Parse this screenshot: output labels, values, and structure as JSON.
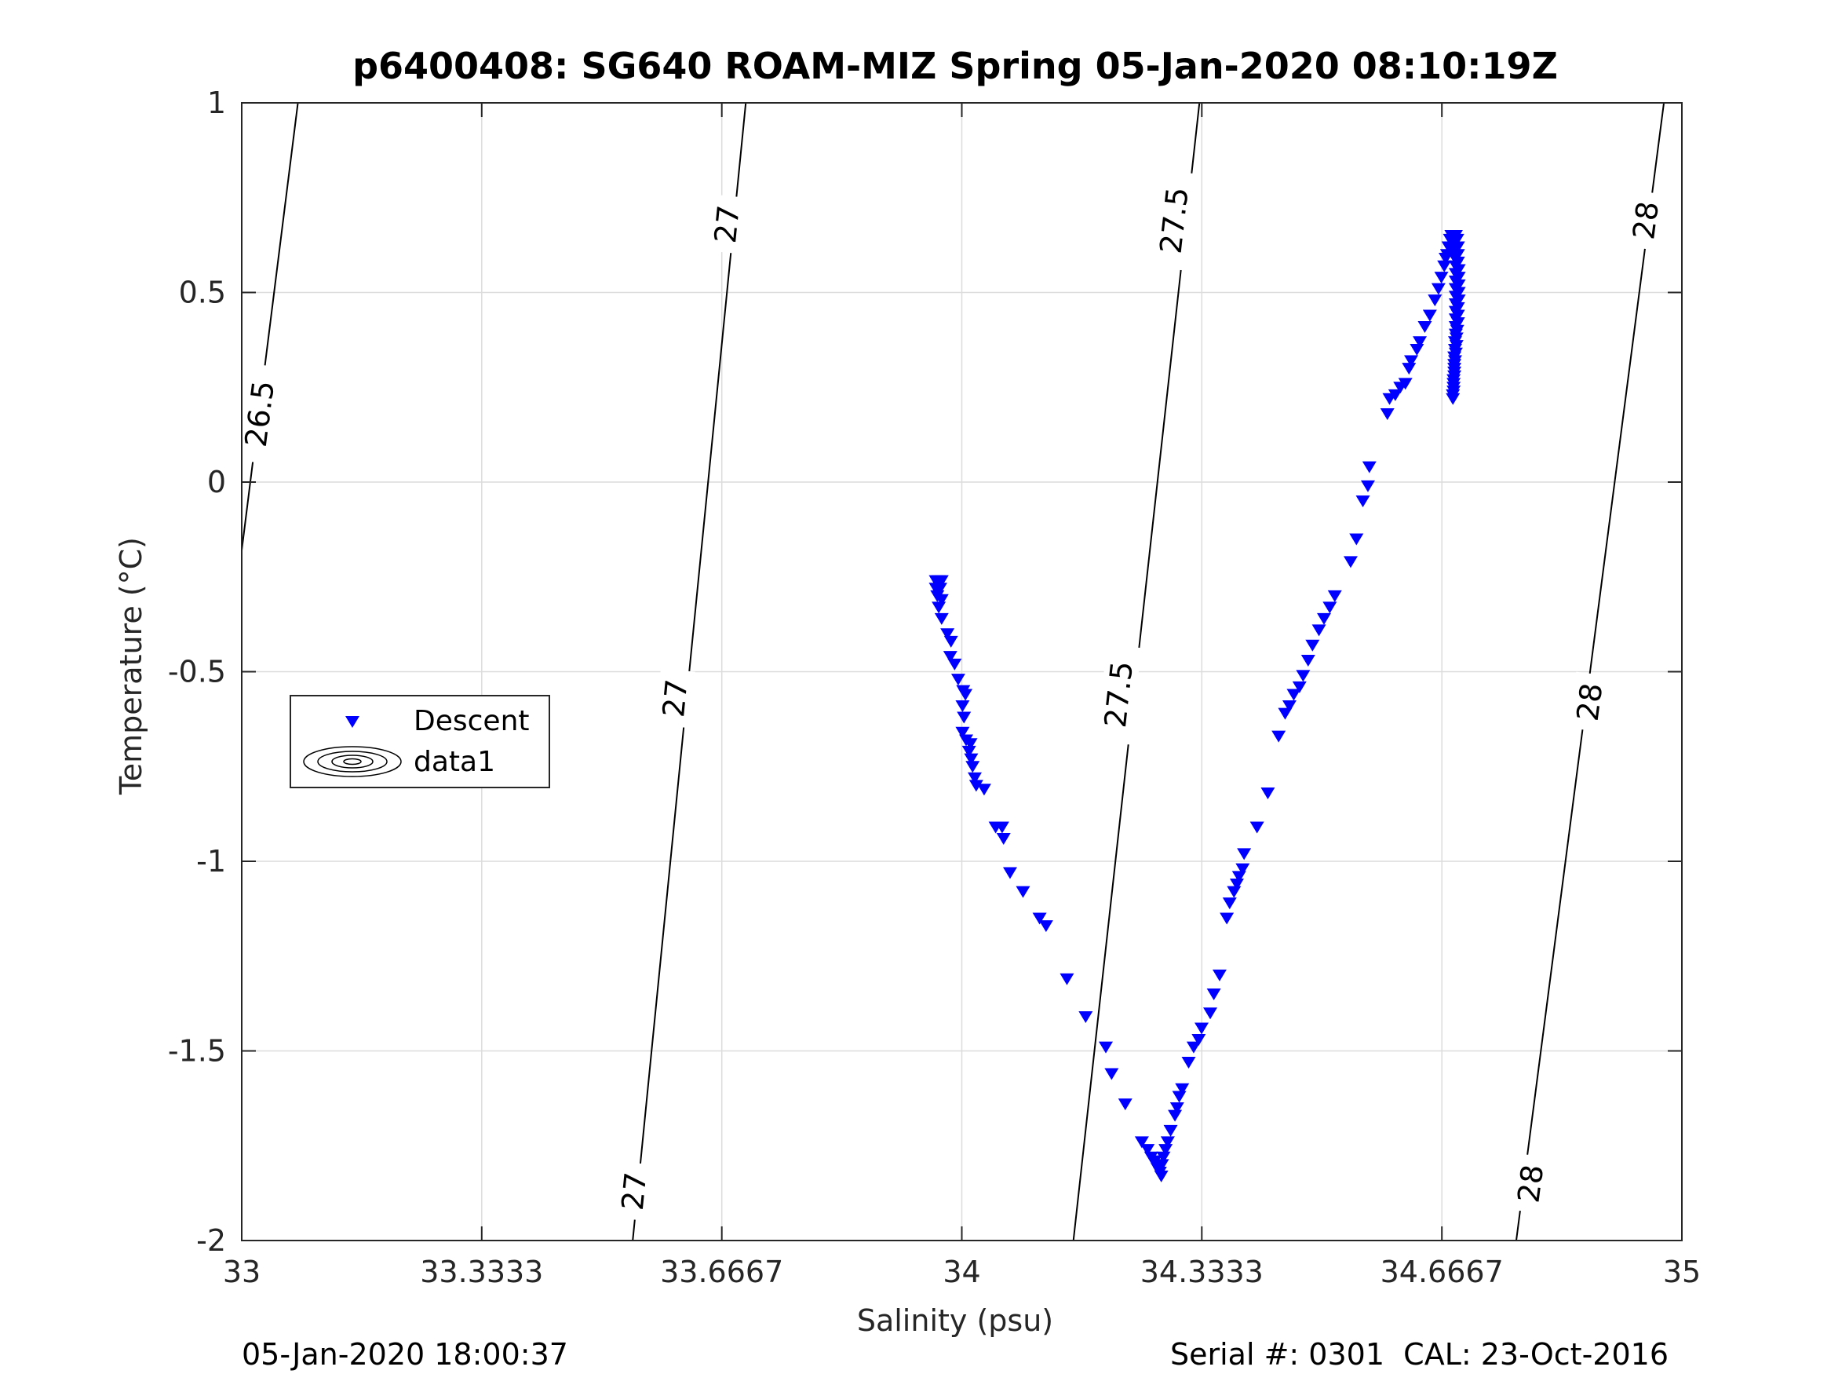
{
  "chart_data": {
    "type": "scatter",
    "title": "p6400408: SG640 ROAM-MIZ Spring 05-Jan-2020 08:10:19Z",
    "xlabel": "Salinity (psu)",
    "ylabel": "Temperature (°C)",
    "xlim": [
      33,
      35
    ],
    "ylim": [
      -2,
      1
    ],
    "xticks": [
      33,
      33.3333,
      33.6667,
      34,
      34.3333,
      34.6667,
      35
    ],
    "xtick_labels": [
      "33",
      "33.3333",
      "33.6667",
      "34",
      "34.3333",
      "34.6667",
      "35"
    ],
    "yticks": [
      -2,
      -1.5,
      -1,
      -0.5,
      0,
      0.5,
      1
    ],
    "ytick_labels": [
      "-2",
      "-1.5",
      "-1",
      "-0.5",
      "0",
      "0.5",
      "1"
    ],
    "grid": true,
    "legend": {
      "placement": "middle-left",
      "entries": [
        {
          "label": "Descent",
          "marker": "triangle-down",
          "color": "#0000ff"
        },
        {
          "label": "data1",
          "marker": "contour",
          "color": "#000000"
        }
      ]
    },
    "series": [
      {
        "name": "Descent",
        "marker": "triangle-down",
        "color": "#0000ff",
        "points": [
          [
            33.964,
            -0.26
          ],
          [
            33.968,
            -0.26
          ],
          [
            33.972,
            -0.26
          ],
          [
            33.964,
            -0.28
          ],
          [
            33.97,
            -0.28
          ],
          [
            33.966,
            -0.3
          ],
          [
            33.972,
            -0.31
          ],
          [
            33.968,
            -0.33
          ],
          [
            33.972,
            -0.36
          ],
          [
            33.98,
            -0.4
          ],
          [
            33.985,
            -0.42
          ],
          [
            33.984,
            -0.46
          ],
          [
            33.99,
            -0.48
          ],
          [
            33.995,
            -0.52
          ],
          [
            34.002,
            -0.55
          ],
          [
            34.005,
            -0.56
          ],
          [
            34.001,
            -0.59
          ],
          [
            34.003,
            -0.62
          ],
          [
            34.001,
            -0.66
          ],
          [
            34.006,
            -0.68
          ],
          [
            34.012,
            -0.69
          ],
          [
            34.01,
            -0.71
          ],
          [
            34.013,
            -0.73
          ],
          [
            34.015,
            -0.75
          ],
          [
            34.018,
            -0.78
          ],
          [
            34.02,
            -0.8
          ],
          [
            34.031,
            -0.81
          ],
          [
            34.047,
            -0.91
          ],
          [
            34.056,
            -0.91
          ],
          [
            34.058,
            -0.94
          ],
          [
            34.067,
            -1.03
          ],
          [
            34.085,
            -1.08
          ],
          [
            34.108,
            -1.15
          ],
          [
            34.117,
            -1.17
          ],
          [
            34.146,
            -1.31
          ],
          [
            34.172,
            -1.41
          ],
          [
            34.2,
            -1.49
          ],
          [
            34.208,
            -1.56
          ],
          [
            34.227,
            -1.64
          ],
          [
            34.25,
            -1.74
          ],
          [
            34.258,
            -1.76
          ],
          [
            34.263,
            -1.78
          ],
          [
            34.268,
            -1.79
          ],
          [
            34.27,
            -1.8
          ],
          [
            34.272,
            -1.81
          ],
          [
            34.275,
            -1.82
          ],
          [
            34.277,
            -1.83
          ],
          [
            34.278,
            -1.8
          ],
          [
            34.28,
            -1.78
          ],
          [
            34.283,
            -1.76
          ],
          [
            34.286,
            -1.74
          ],
          [
            34.29,
            -1.71
          ],
          [
            34.296,
            -1.67
          ],
          [
            34.299,
            -1.65
          ],
          [
            34.302,
            -1.62
          ],
          [
            34.306,
            -1.6
          ],
          [
            34.315,
            -1.53
          ],
          [
            34.322,
            -1.49
          ],
          [
            34.329,
            -1.47
          ],
          [
            34.333,
            -1.44
          ],
          [
            34.345,
            -1.4
          ],
          [
            34.35,
            -1.35
          ],
          [
            34.358,
            -1.3
          ],
          [
            34.368,
            -1.15
          ],
          [
            34.372,
            -1.11
          ],
          [
            34.378,
            -1.08
          ],
          [
            34.382,
            -1.06
          ],
          [
            34.385,
            -1.04
          ],
          [
            34.39,
            -1.02
          ],
          [
            34.392,
            -0.98
          ],
          [
            34.41,
            -0.91
          ],
          [
            34.425,
            -0.82
          ],
          [
            34.44,
            -0.67
          ],
          [
            34.449,
            -0.61
          ],
          [
            34.455,
            -0.59
          ],
          [
            34.461,
            -0.56
          ],
          [
            34.469,
            -0.54
          ],
          [
            34.474,
            -0.51
          ],
          [
            34.481,
            -0.47
          ],
          [
            34.487,
            -0.43
          ],
          [
            34.496,
            -0.39
          ],
          [
            34.503,
            -0.36
          ],
          [
            34.511,
            -0.33
          ],
          [
            34.518,
            -0.3
          ],
          [
            34.54,
            -0.21
          ],
          [
            34.548,
            -0.15
          ],
          [
            34.557,
            -0.05
          ],
          [
            34.564,
            -0.01
          ],
          [
            34.566,
            0.04
          ],
          [
            34.591,
            0.18
          ],
          [
            34.594,
            0.22
          ],
          [
            34.602,
            0.23
          ],
          [
            34.609,
            0.25
          ],
          [
            34.616,
            0.26
          ],
          [
            34.621,
            0.3
          ],
          [
            34.624,
            0.32
          ],
          [
            34.632,
            0.35
          ],
          [
            34.636,
            0.37
          ],
          [
            34.643,
            0.41
          ],
          [
            34.65,
            0.44
          ],
          [
            34.657,
            0.48
          ],
          [
            34.662,
            0.51
          ],
          [
            34.666,
            0.54
          ],
          [
            34.67,
            0.57
          ],
          [
            34.672,
            0.59
          ],
          [
            34.674,
            0.6
          ],
          [
            34.676,
            0.62
          ],
          [
            34.678,
            0.64
          ],
          [
            34.68,
            0.65
          ],
          [
            34.683,
            0.65
          ],
          [
            34.686,
            0.65
          ],
          [
            34.688,
            0.64
          ],
          [
            34.689,
            0.62
          ],
          [
            34.689,
            0.6
          ],
          [
            34.689,
            0.58
          ],
          [
            34.69,
            0.56
          ],
          [
            34.69,
            0.54
          ],
          [
            34.69,
            0.52
          ],
          [
            34.69,
            0.5
          ],
          [
            34.69,
            0.48
          ],
          [
            34.689,
            0.46
          ],
          [
            34.689,
            0.44
          ],
          [
            34.689,
            0.42
          ],
          [
            34.688,
            0.4
          ],
          [
            34.687,
            0.38
          ],
          [
            34.687,
            0.36
          ],
          [
            34.686,
            0.34
          ],
          [
            34.685,
            0.32
          ],
          [
            34.684,
            0.3
          ],
          [
            34.684,
            0.28
          ],
          [
            34.683,
            0.26
          ],
          [
            34.683,
            0.24
          ],
          [
            34.682,
            0.22
          ],
          [
            34.682,
            0.23
          ],
          [
            34.683,
            0.25
          ],
          [
            34.683,
            0.27
          ],
          [
            34.684,
            0.29
          ],
          [
            34.684,
            0.31
          ],
          [
            34.684,
            0.33
          ],
          [
            34.685,
            0.35
          ],
          [
            34.685,
            0.37
          ],
          [
            34.686,
            0.39
          ],
          [
            34.686,
            0.41
          ],
          [
            34.686,
            0.43
          ],
          [
            34.686,
            0.45
          ],
          [
            34.686,
            0.47
          ],
          [
            34.686,
            0.49
          ],
          [
            34.686,
            0.51
          ],
          [
            34.686,
            0.53
          ],
          [
            34.686,
            0.55
          ],
          [
            34.686,
            0.57
          ],
          [
            34.685,
            0.59
          ],
          [
            34.684,
            0.61
          ],
          [
            34.683,
            0.63
          ],
          [
            34.682,
            0.64
          ],
          [
            34.681,
            0.65
          ]
        ]
      },
      {
        "name": "data1",
        "type": "contour",
        "color": "#000000",
        "isopycnals": [
          {
            "level": 26.5,
            "line": [
              [
                33.0,
                -0.18
              ],
              [
                33.078,
                1.0
              ]
            ],
            "labels": [
              {
                "text": "26.5",
                "x": 33.025,
                "y": 0.18
              }
            ]
          },
          {
            "level": 27,
            "line": [
              [
                33.543,
                -2.0
              ],
              [
                33.7,
                1.0
              ]
            ],
            "labels": [
              {
                "text": "27",
                "x": 33.545,
                "y": -1.87
              },
              {
                "text": "27",
                "x": 33.602,
                "y": -0.57
              },
              {
                "text": "27",
                "x": 33.674,
                "y": 0.68
              }
            ]
          },
          {
            "level": 27.5,
            "line": [
              [
                34.155,
                -2.0
              ],
              [
                34.33,
                1.0
              ]
            ],
            "labels": [
              {
                "text": "27.5",
                "x": 34.218,
                "y": -0.56
              },
              {
                "text": "27.5",
                "x": 34.295,
                "y": 0.69
              }
            ]
          },
          {
            "level": 28,
            "line": [
              [
                34.77,
                -2.0
              ],
              [
                34.975,
                1.0
              ]
            ],
            "labels": [
              {
                "text": "28",
                "x": 34.79,
                "y": -1.85
              },
              {
                "text": "28",
                "x": 34.872,
                "y": -0.58
              },
              {
                "text": "28",
                "x": 34.95,
                "y": 0.69
              }
            ]
          }
        ]
      }
    ]
  },
  "footer": {
    "left": "05-Jan-2020 18:00:37",
    "right": "Serial #: 0301  CAL: 23-Oct-2016"
  }
}
